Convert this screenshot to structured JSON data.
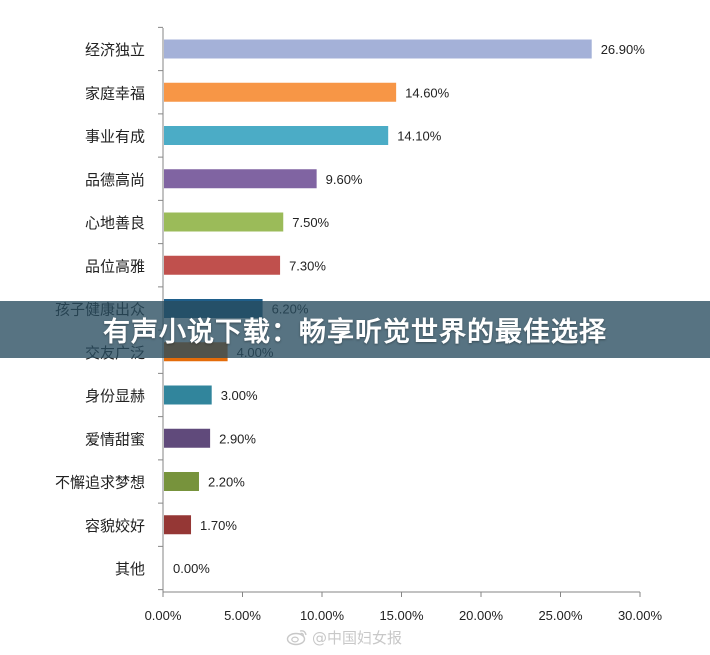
{
  "chart_data": {
    "type": "bar",
    "orientation": "horizontal",
    "categories": [
      "经济独立",
      "家庭幸福",
      "事业有成",
      "品德高尚",
      "心地善良",
      "品位高雅",
      "孩子健康出众",
      "交友广泛",
      "身份显赫",
      "爱情甜蜜",
      "不懈追求梦想",
      "容貌姣好",
      "其他"
    ],
    "values": [
      26.9,
      14.6,
      14.1,
      9.6,
      7.5,
      7.3,
      6.2,
      4.0,
      3.0,
      2.9,
      2.2,
      1.7,
      0.0
    ],
    "value_labels": [
      "26.90%",
      "14.60%",
      "14.10%",
      "9.60%",
      "7.50%",
      "7.30%",
      "6.20%",
      "4.00%",
      "3.00%",
      "2.90%",
      "2.20%",
      "1.70%",
      "0.00%"
    ],
    "colors": [
      "#a4b1d8",
      "#f79646",
      "#4bacc6",
      "#8064a2",
      "#9bbb59",
      "#c0504d",
      "#1f5f8b",
      "#e46c0a",
      "#31859c",
      "#604a7b",
      "#77933c",
      "#953735",
      "#7f7f7f"
    ],
    "xlim": [
      0,
      30
    ],
    "xticks": [
      0,
      5,
      10,
      15,
      20,
      25,
      30
    ],
    "xtick_labels": [
      "0.00%",
      "5.00%",
      "10.00%",
      "15.00%",
      "20.00%",
      "25.00%",
      "30.00%"
    ],
    "title": "",
    "xlabel": "",
    "ylabel": "",
    "grid": false,
    "legend": "none"
  },
  "overlay": {
    "banner_text": "有声小说下载：畅享听觉世界的最佳选择",
    "watermark_text": "@中国妇女报",
    "watermark_icon": "weibo-icon"
  }
}
